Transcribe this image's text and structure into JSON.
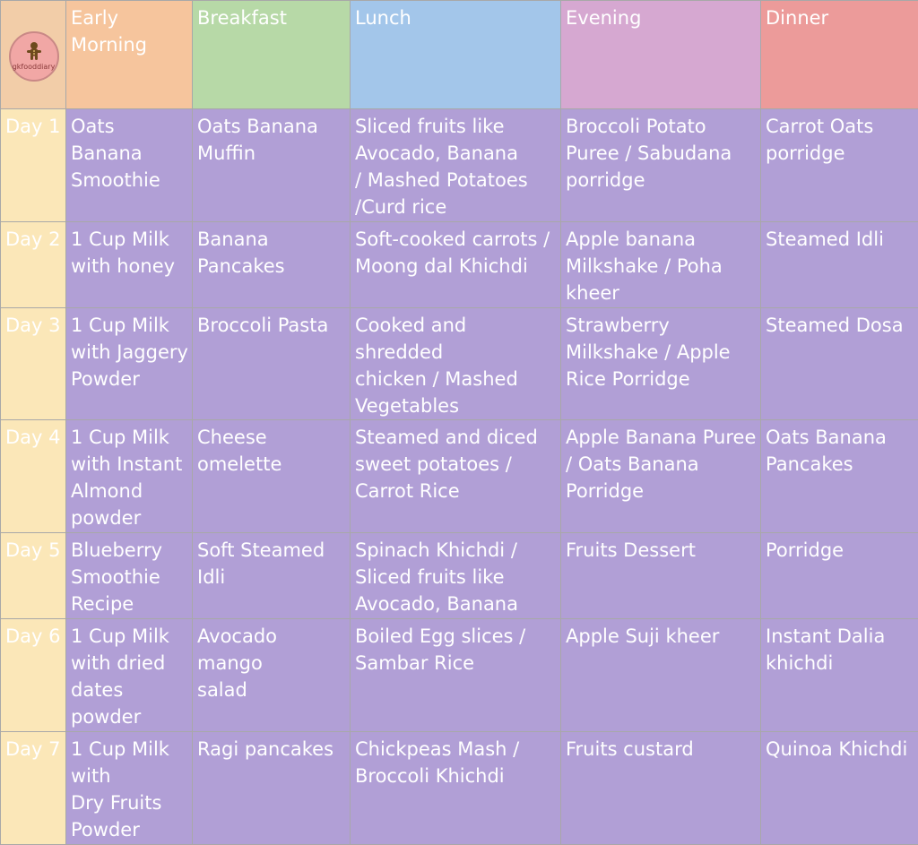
{
  "logo": {
    "text": "gkfooddiary",
    "icon": "gingerbread-figure-icon",
    "colors": {
      "circle": "#f1a7a5",
      "figure": "#6e4a1d"
    }
  },
  "columns": [
    {
      "label": "Early\nMorning",
      "color": "#f6c59d"
    },
    {
      "label": "Breakfast",
      "color": "#b7d9a7"
    },
    {
      "label": "Lunch",
      "color": "#a3c6ea"
    },
    {
      "label": "Evening",
      "color": "#d6a8d1"
    },
    {
      "label": "Dinner",
      "color": "#ec9b9a"
    }
  ],
  "colors": {
    "cell": "#b19fd6",
    "day_label": "#fbe7b8",
    "corner": "#f2cda8"
  },
  "days": [
    {
      "label": "Day 1",
      "meals": [
        "Oats Banana\nSmoothie",
        "Oats Banana\nMuffin",
        "Sliced fruits like\nAvocado, Banana\n/ Mashed Potatoes\n/Curd rice",
        "Broccoli Potato\nPuree / Sabudana\nporridge",
        "Carrot Oats\nporridge"
      ]
    },
    {
      "label": "Day 2",
      "meals": [
        "1 Cup Milk\nwith honey",
        "Banana\nPancakes",
        "Soft-cooked carrots /\nMoong dal Khichdi",
        "Apple banana\nMilkshake / Poha\nkheer",
        "Steamed Idli"
      ]
    },
    {
      "label": "Day 3",
      "meals": [
        "1 Cup Milk\nwith Jaggery\nPowder",
        "Broccoli Pasta",
        "Cooked and shredded\nchicken / Mashed\nVegetables",
        "Strawberry\nMilkshake  / Apple\nRice Porridge",
        "Steamed Dosa"
      ]
    },
    {
      "label": "Day 4",
      "meals": [
        "1 Cup Milk\nwith Instant\nAlmond\npowder",
        "Cheese\nomelette",
        "Steamed and diced\nsweet potatoes /\nCarrot Rice",
        "Apple Banana Puree\n/ Oats Banana\nPorridge",
        "Oats Banana\nPancakes"
      ]
    },
    {
      "label": "Day 5",
      "meals": [
        "Blueberry\nSmoothie\nRecipe",
        "Soft Steamed\nIdli",
        "Spinach Khichdi /\nSliced fruits like\nAvocado, Banana",
        "Fruits Dessert",
        "Porridge"
      ]
    },
    {
      "label": "Day 6",
      "meals": [
        "1 Cup Milk\nwith dried\ndates\npowder",
        "Avocado mango\nsalad",
        "Boiled Egg slices /\nSambar Rice",
        "Apple Suji kheer",
        "Instant Dalia\nkhichdi"
      ]
    },
    {
      "label": "Day 7",
      "meals": [
        "1 Cup Milk\nwith\nDry Fruits\nPowder",
        "Ragi pancakes",
        "Chickpeas Mash /\nBroccoli Khichdi",
        "Fruits custard",
        "Quinoa Khichdi"
      ]
    }
  ]
}
